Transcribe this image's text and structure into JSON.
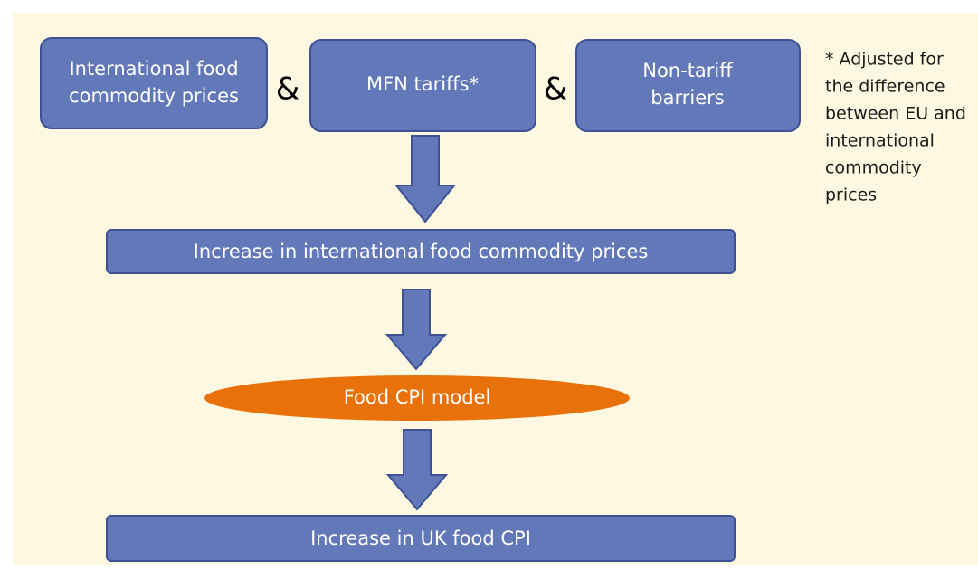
{
  "nodes": [
    {
      "lines": [
        "International food",
        "commodity prices"
      ]
    },
    {
      "lines": [
        "MFN tariffs*"
      ]
    },
    {
      "lines": [
        "Non-tariff",
        "barriers"
      ]
    },
    {
      "lines": [
        "Increase in international food commodity prices"
      ]
    },
    {
      "lines": [
        "Food CPI model"
      ]
    },
    {
      "lines": [
        "Increase in UK food CPI"
      ]
    }
  ],
  "connectors": [
    "&",
    "&"
  ],
  "note": {
    "lines": [
      "* Adjusted for",
      "the difference",
      "between EU and",
      "international",
      "commodity",
      "prices"
    ]
  }
}
